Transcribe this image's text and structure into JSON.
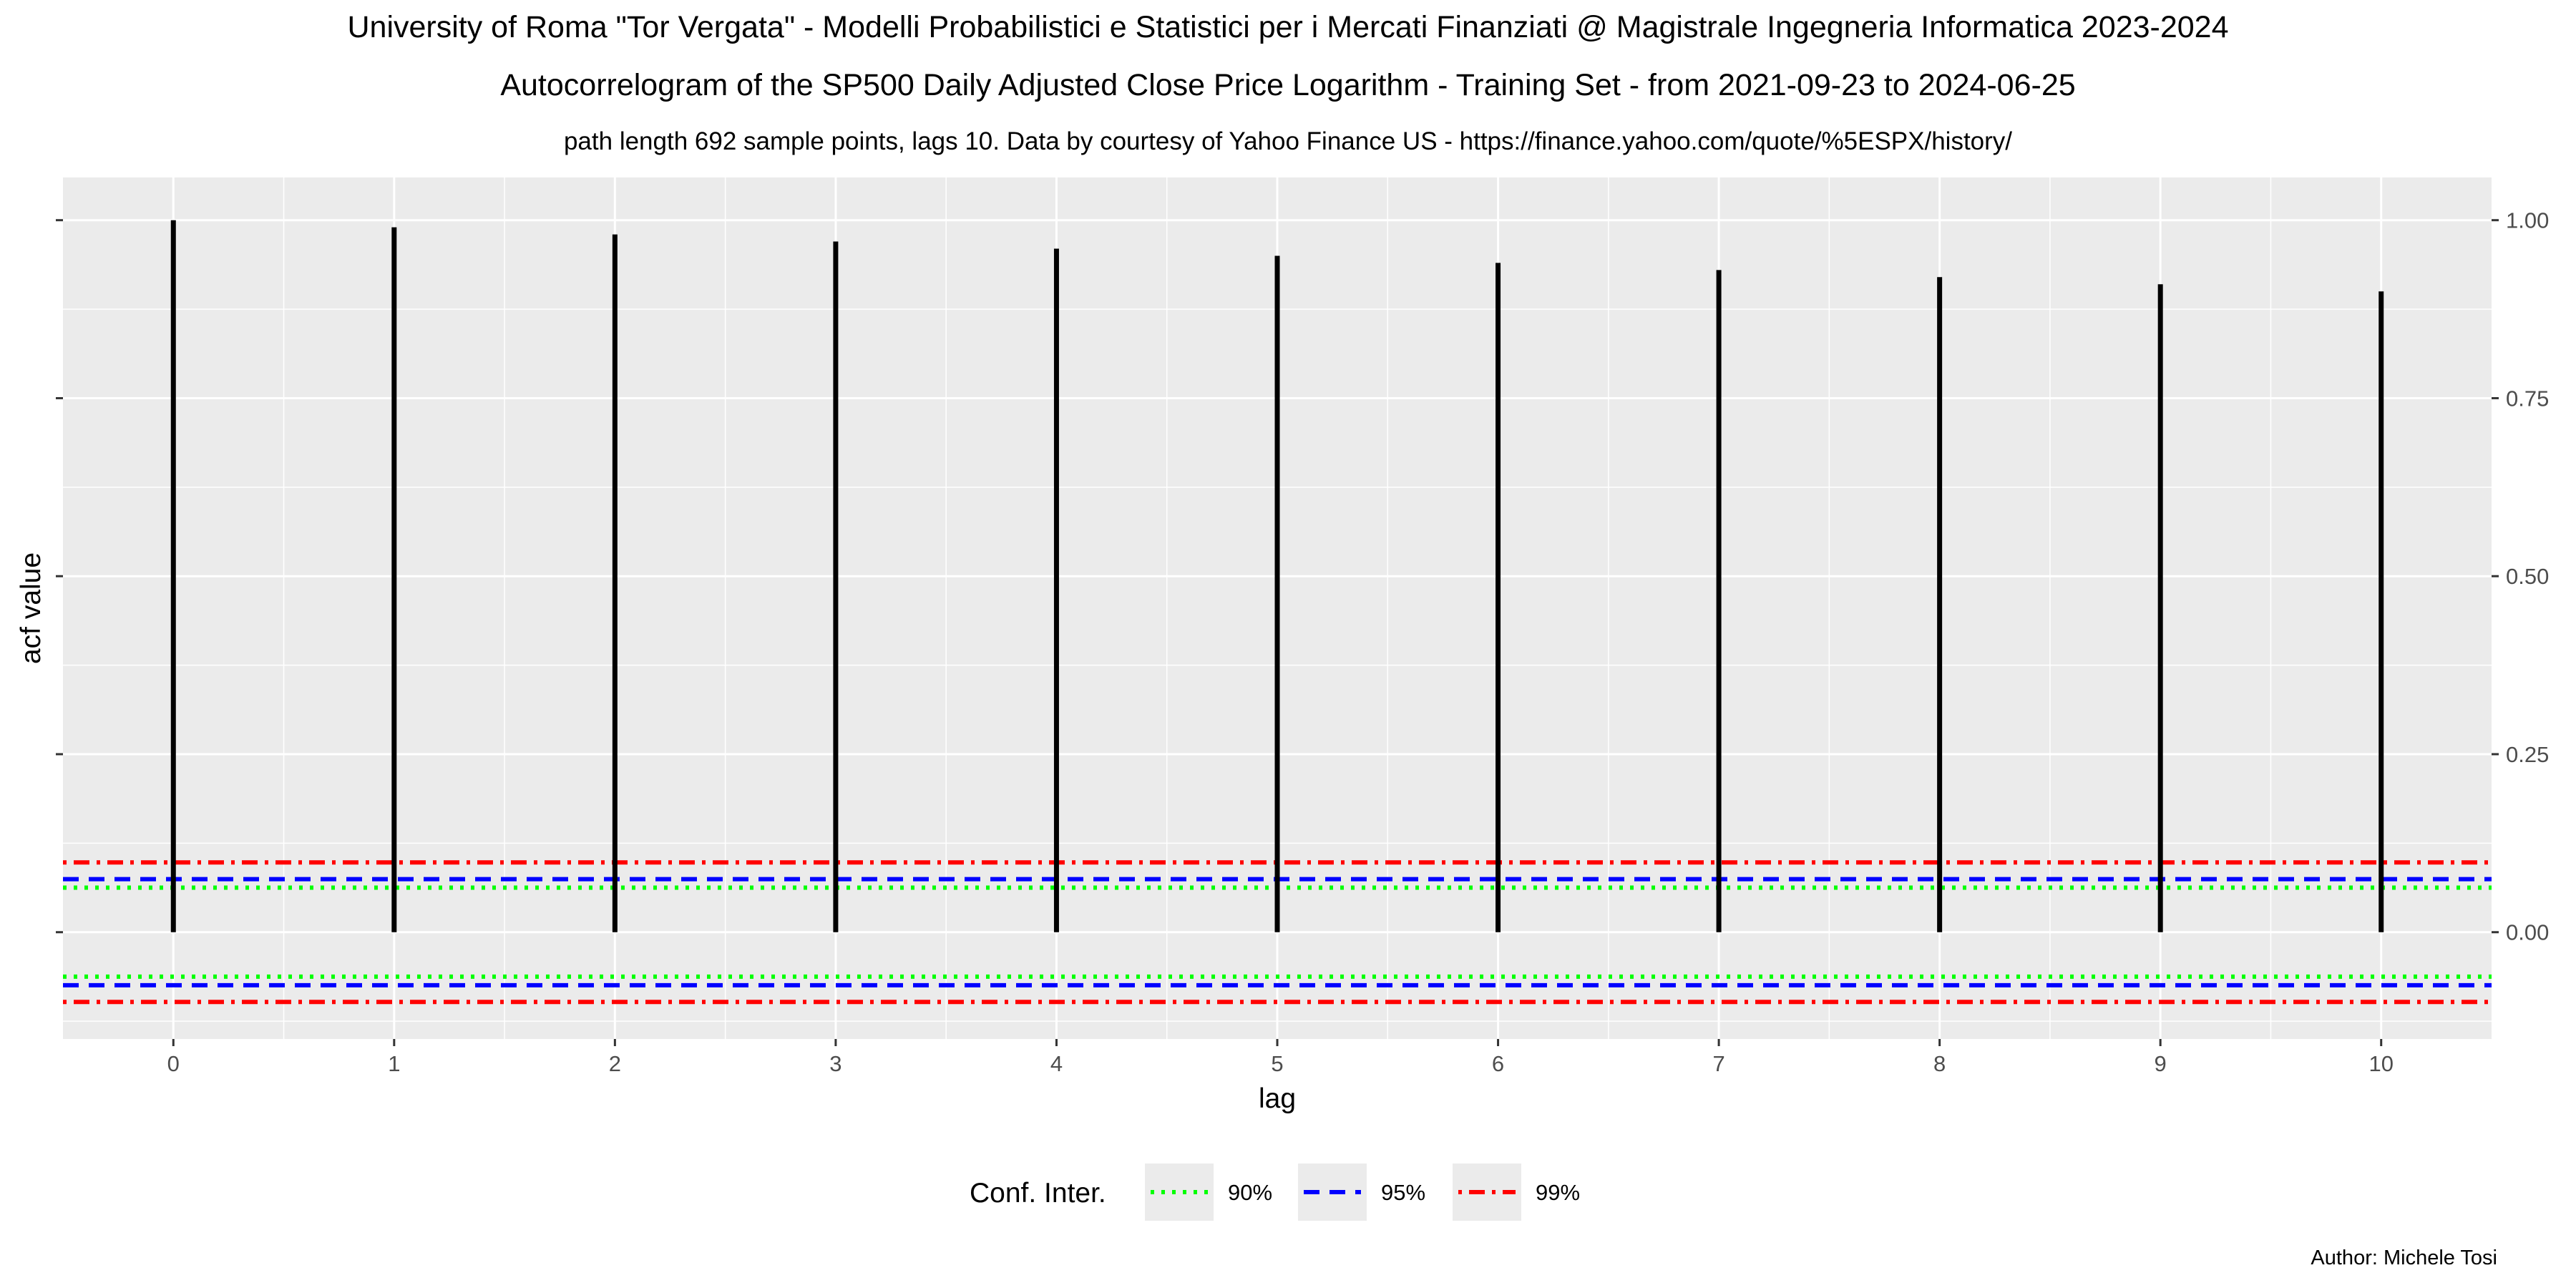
{
  "chart_data": {
    "type": "bar",
    "title": "University of Roma \"Tor Vergata\" - Modelli Probabilistici e Statistici per i Mercati Finanziati @ Magistrale Ingegneria Informatica 2023-2024",
    "subtitle": "Autocorrelogram of the SP500 Daily Adjusted Close Price Logarithm - Training Set - from 2021-09-23 to 2024-06-25",
    "note": "path length 692 sample points,  lags 10.  Data by courtesy of Yahoo Finance US - https://finance.yahoo.com/quote/%5ESPX/history/",
    "xlabel": "lag",
    "ylabel": "acf value",
    "x": [
      0,
      1,
      2,
      3,
      4,
      5,
      6,
      7,
      8,
      9,
      10
    ],
    "values": [
      1.0,
      0.99,
      0.98,
      0.97,
      0.96,
      0.95,
      0.94,
      0.93,
      0.92,
      0.91,
      0.9
    ],
    "xlim": [
      -0.5,
      10.5
    ],
    "ylim": [
      -0.15,
      1.06
    ],
    "yticks": [
      0.0,
      0.25,
      0.5,
      0.75,
      1.0
    ],
    "ytick_labels": [
      "0.00",
      "0.25",
      "0.50",
      "0.75",
      "1.00"
    ],
    "xticks": [
      0,
      1,
      2,
      3,
      4,
      5,
      6,
      7,
      8,
      9,
      10
    ],
    "xtick_labels": [
      "0",
      "1",
      "2",
      "3",
      "4",
      "5",
      "6",
      "7",
      "8",
      "9",
      "10"
    ],
    "grid": true,
    "confidence_intervals": [
      {
        "name": "90%",
        "value": 0.0625,
        "color": "#00ff00",
        "style": "dotted"
      },
      {
        "name": "95%",
        "value": 0.0745,
        "color": "#0000ff",
        "style": "dashed"
      },
      {
        "name": "99%",
        "value": 0.098,
        "color": "#ff0000",
        "style": "dotdash"
      }
    ],
    "legend": {
      "title": "Conf. Inter.",
      "position": "bottom"
    },
    "caption": "Author: Michele Tosi"
  }
}
